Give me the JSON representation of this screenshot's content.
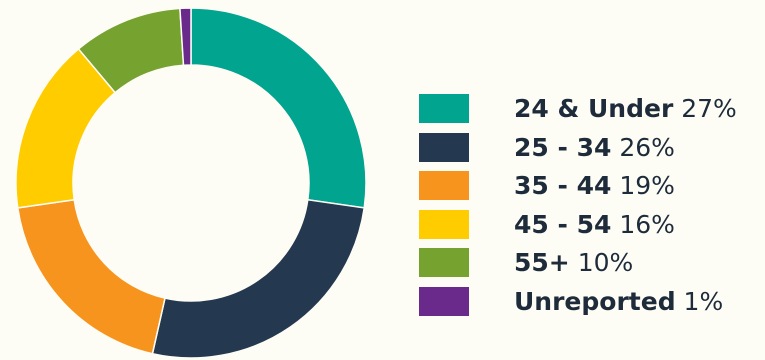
{
  "chart_data": {
    "type": "pie",
    "donut": true,
    "categories": [
      "24 & Under",
      "25 - 34",
      "35 - 44",
      "45 - 54",
      "55+",
      "Unreported"
    ],
    "values": [
      27,
      26,
      19,
      16,
      10,
      1
    ],
    "value_labels": [
      "27%",
      "26%",
      "19%",
      "16%",
      "10%",
      "1%"
    ],
    "colors": [
      "#00a48f",
      "#243850",
      "#f7941d",
      "#ffcc00",
      "#76a22f",
      "#6a2a8c"
    ],
    "legend_position": "right"
  },
  "legend": [
    {
      "label": "24 & Under",
      "value": "27%"
    },
    {
      "label": "25 - 34",
      "value": "26%"
    },
    {
      "label": "35 - 44",
      "value": "19%"
    },
    {
      "label": "45 - 54",
      "value": "16%"
    },
    {
      "label": "55+",
      "value": "10%"
    },
    {
      "label": "Unreported",
      "value": "1%"
    }
  ]
}
